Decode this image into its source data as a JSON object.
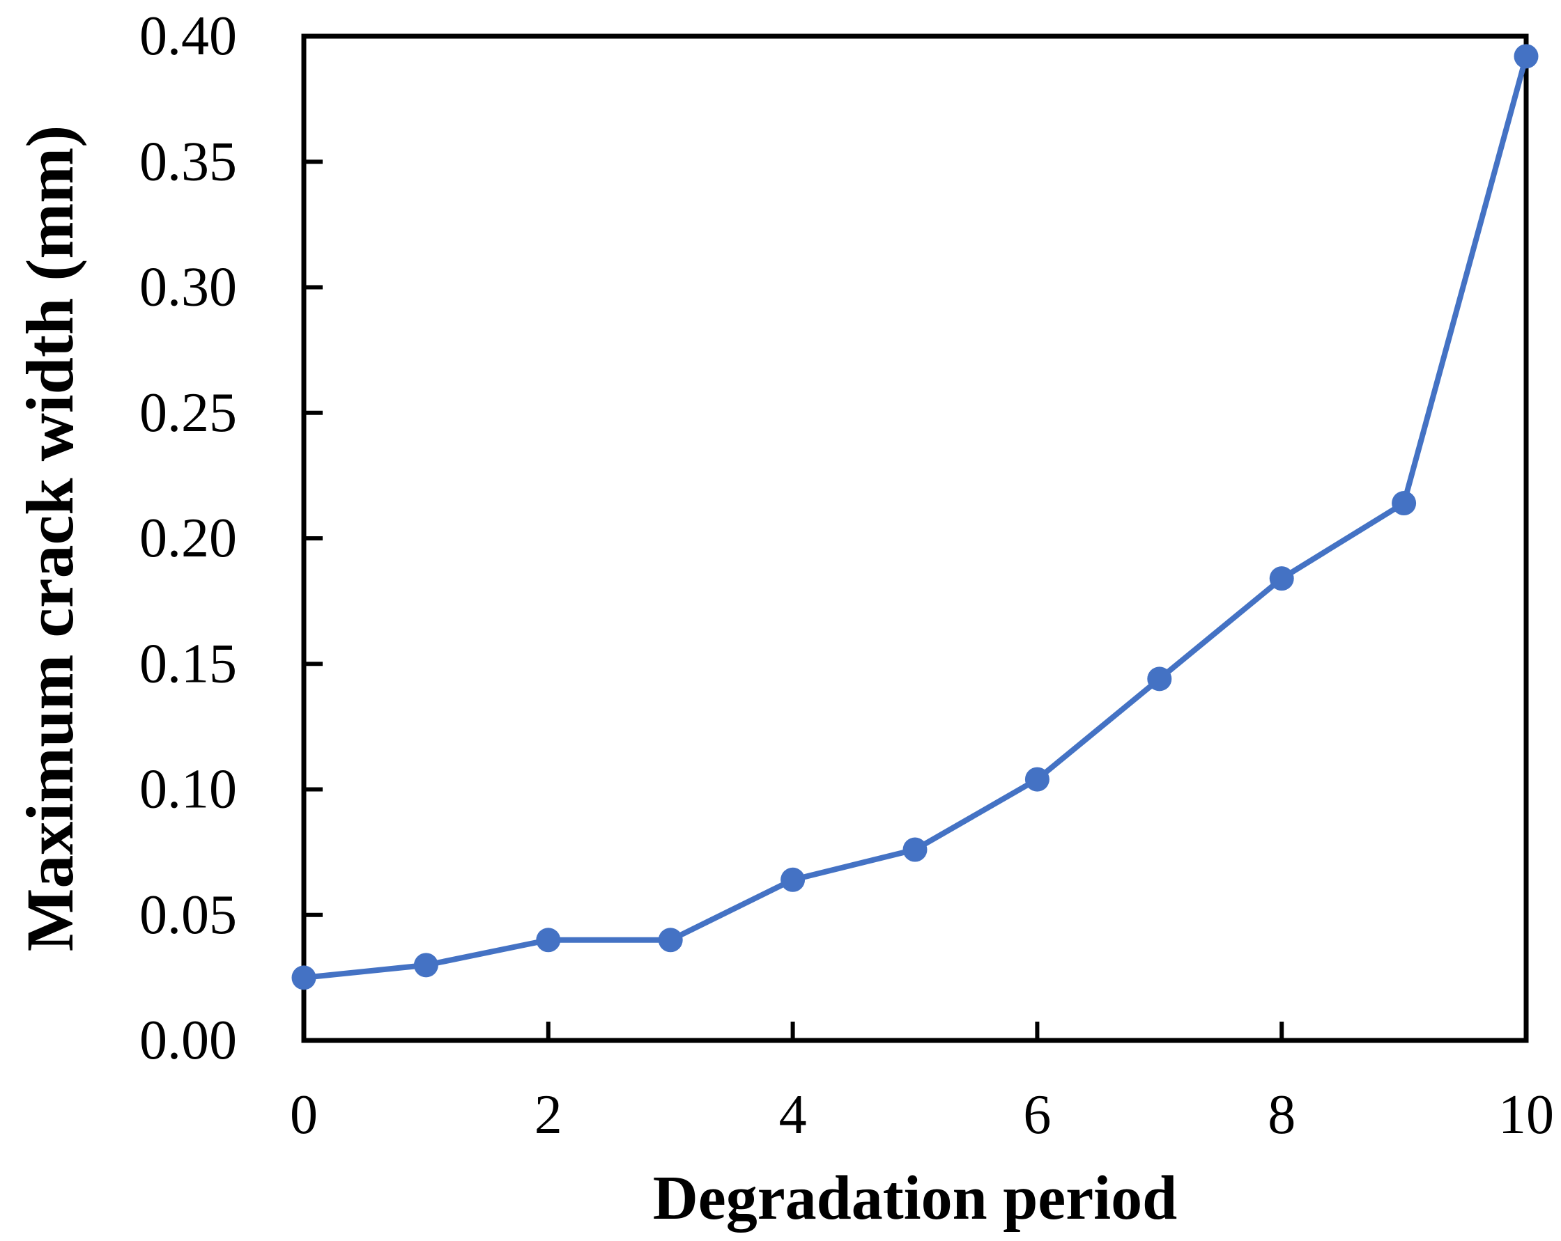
{
  "chart_data": {
    "type": "line",
    "title": "",
    "xlabel": "Degradation period",
    "ylabel": "Maximum crack width (mm)",
    "x": [
      0,
      1,
      2,
      3,
      4,
      5,
      6,
      7,
      8,
      9,
      10
    ],
    "series": [
      {
        "name": "Maximum crack width",
        "values": [
          0.025,
          0.03,
          0.04,
          0.04,
          0.064,
          0.076,
          0.104,
          0.144,
          0.184,
          0.214,
          0.392
        ]
      }
    ],
    "xlim": [
      0,
      10
    ],
    "ylim": [
      0.0,
      0.4
    ],
    "x_ticks": [
      0,
      2,
      4,
      6,
      8,
      10
    ],
    "x_tick_labels": [
      "0",
      "2",
      "4",
      "6",
      "8",
      "10"
    ],
    "y_ticks": [
      0.0,
      0.05,
      0.1,
      0.15,
      0.2,
      0.25,
      0.3,
      0.35,
      0.4
    ],
    "y_tick_labels": [
      "0.00",
      "0.05",
      "0.10",
      "0.15",
      "0.20",
      "0.25",
      "0.30",
      "0.35",
      "0.40"
    ],
    "grid": false,
    "legend": "none",
    "marker": "circle",
    "line_color": "#4472C4",
    "marker_color": "#4472C4",
    "axis_color": "#000000",
    "tick_direction": "in",
    "background": "#FFFFFF"
  }
}
